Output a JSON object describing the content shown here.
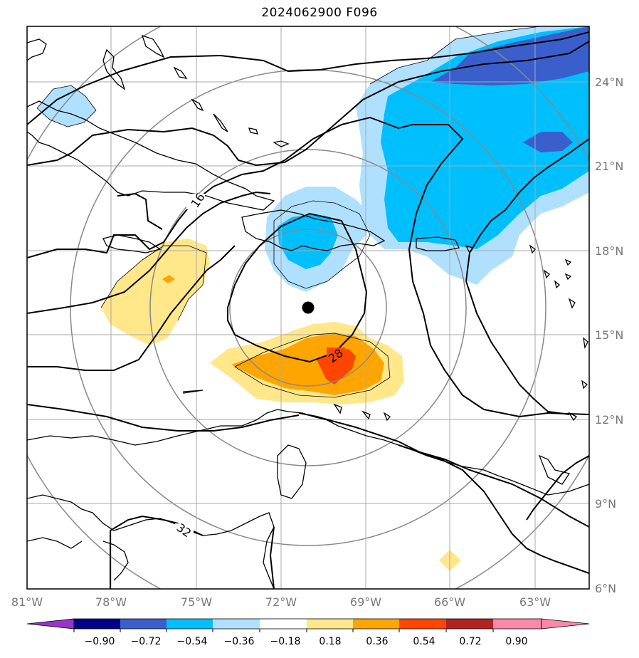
{
  "title": "2024062900 F096",
  "colors": {
    "dark_blue": "#3a5fcd",
    "deep_sky": "#00bfff",
    "light_blue": "#b0e0ff",
    "light_yellow": "#ffe78a",
    "orange": "#ffa500",
    "red_orange": "#ff4500",
    "center_marker": "#000000"
  },
  "lon_labels": [
    "81°W",
    "78°W",
    "75°W",
    "72°W",
    "69°W",
    "66°W",
    "63°W"
  ],
  "lat_labels": [
    "24°N",
    "21°N",
    "18°N",
    "15°N",
    "12°N",
    "9°N",
    "6°N"
  ],
  "contour_labels": [
    "16",
    "28",
    "32"
  ],
  "colorbar": {
    "colors": [
      "#9933cc",
      "#00008b",
      "#3a5fcd",
      "#00bfff",
      "#b0e0ff",
      "#ffffff",
      "#ffe78a",
      "#ffa500",
      "#ff4500",
      "#b22222",
      "#ff88aa"
    ],
    "ticks": [
      "−0.90",
      "−0.72",
      "−0.54",
      "−0.36",
      "−0.18",
      "0.18",
      "0.36",
      "0.54",
      "0.72",
      "0.90"
    ]
  }
}
